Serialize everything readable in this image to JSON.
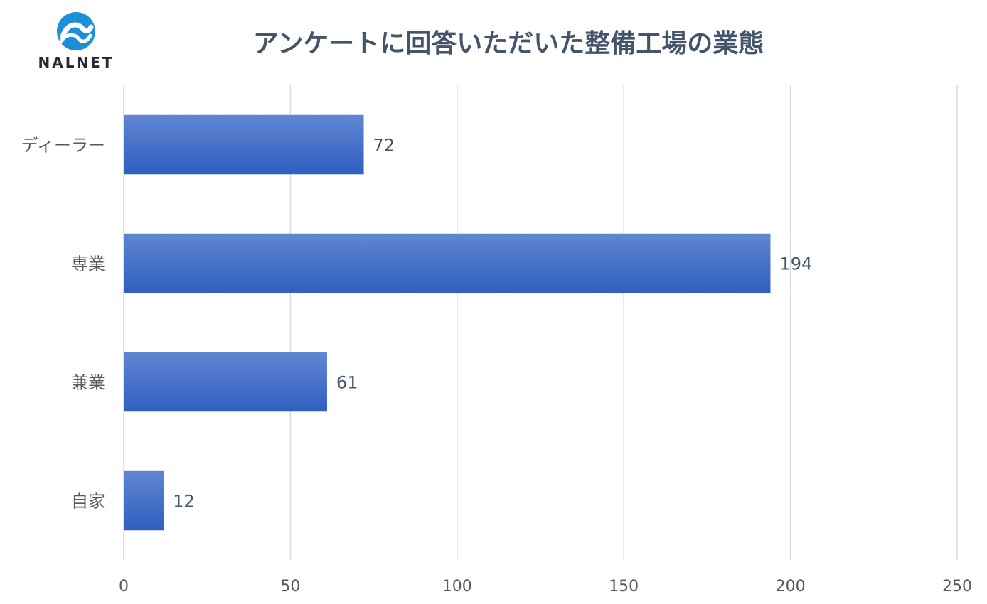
{
  "logo": {
    "text": "NALNET",
    "icon": "nalnet-wave-logo-icon",
    "color": "#1b8fd8"
  },
  "chart_data": {
    "type": "bar",
    "orientation": "horizontal",
    "title": "アンケートに回答いただいた整備工場の業態",
    "categories": [
      "ディーラー",
      "専業",
      "兼業",
      "自家"
    ],
    "values": [
      72,
      194,
      61,
      12
    ],
    "data_labels": [
      "72",
      "194",
      "61",
      "12"
    ],
    "x_ticks": [
      "0",
      "50",
      "100",
      "150",
      "200",
      "250"
    ],
    "xlim": [
      0,
      250
    ],
    "grid": "vertical",
    "legend": "none",
    "bar_color": "#3a67c4"
  }
}
